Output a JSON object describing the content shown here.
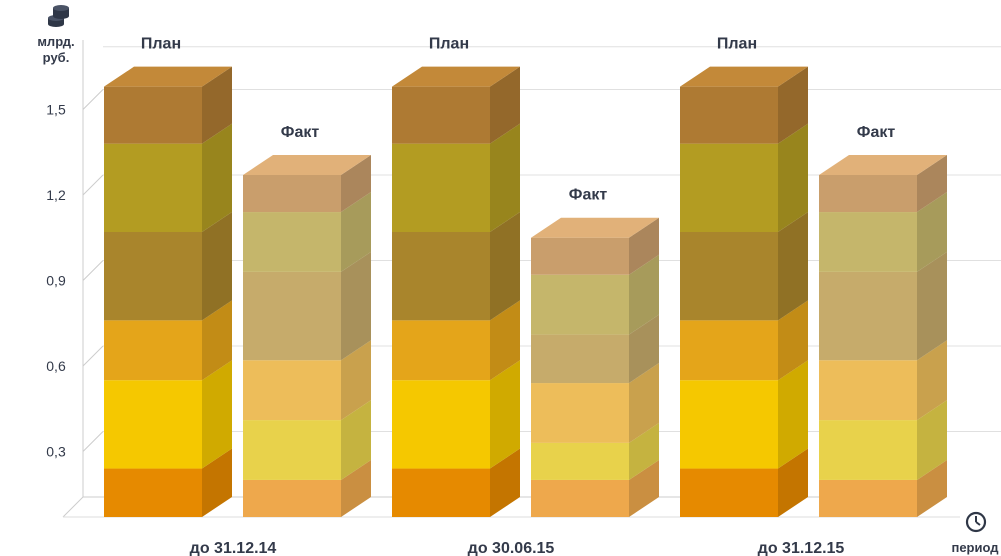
{
  "chart_data": {
    "type": "bar",
    "stacked": true,
    "three_d": true,
    "ylabel": "млрд. руб.",
    "ylabel_lines": [
      "млрд.",
      "руб."
    ],
    "xlabel": "период",
    "y_ticks": [
      "0,3",
      "0,6",
      "0,9",
      "1,2",
      "1,5"
    ],
    "y_tick_values": [
      0.3,
      0.6,
      0.9,
      1.2,
      1.5
    ],
    "ylim": [
      0,
      1.65
    ],
    "grid": true,
    "categories": [
      "до 31.12.14",
      "до 30.06.15",
      "до 31.12.15"
    ],
    "bar_labels": {
      "plan": "План",
      "fact": "Факт"
    },
    "colors": {
      "plan_segments": [
        "#e68a00",
        "#f5c800",
        "#e4a51a",
        "#a9852c",
        "#b39c22",
        "#ae7a33"
      ],
      "fact_segments": [
        "#eea84c",
        "#e8d24b",
        "#edbd5a",
        "#c6ab6b",
        "#c5b66b",
        "#c99e6c"
      ],
      "axis": "#cccccc",
      "text": "#333a4a"
    },
    "bars": [
      {
        "category": "до 31.12.14",
        "plan_segments": [
          0.17,
          0.31,
          0.21,
          0.31,
          0.31,
          0.2
        ],
        "fact_segments": [
          0.13,
          0.21,
          0.21,
          0.31,
          0.21,
          0.13
        ]
      },
      {
        "category": "до 30.06.15",
        "plan_segments": [
          0.17,
          0.31,
          0.21,
          0.31,
          0.31,
          0.2
        ],
        "fact_segments": [
          0.13,
          0.13,
          0.21,
          0.17,
          0.21,
          0.13
        ]
      },
      {
        "category": "до 31.12.15",
        "plan_segments": [
          0.17,
          0.31,
          0.21,
          0.31,
          0.31,
          0.2
        ],
        "fact_segments": [
          0.13,
          0.21,
          0.21,
          0.31,
          0.21,
          0.13
        ]
      }
    ]
  }
}
